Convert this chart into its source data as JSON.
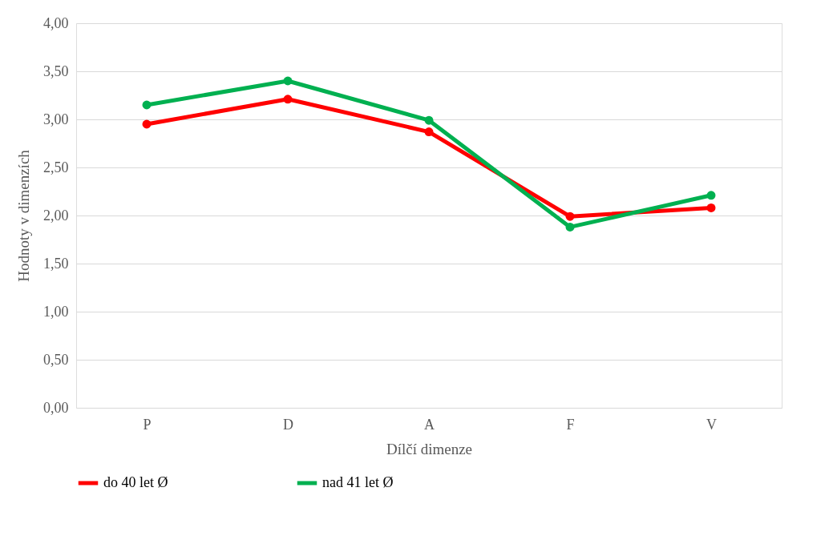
{
  "chart_data": {
    "type": "line",
    "xlabel": "Dílčí dimenze",
    "ylabel": "Hodnoty v dimenzích",
    "categories": [
      "P",
      "D",
      "A",
      "F",
      "V"
    ],
    "series": [
      {
        "name": "do 40 let Ø",
        "color": "#ff0000",
        "values": [
          2.95,
          3.21,
          2.87,
          1.99,
          2.08
        ]
      },
      {
        "name": "nad 41 let Ø",
        "color": "#00b050",
        "values": [
          3.15,
          3.4,
          2.99,
          1.88,
          2.21
        ]
      }
    ],
    "ylim": [
      0,
      4
    ],
    "yticks": [
      {
        "value": 0,
        "label": "0,00"
      },
      {
        "value": 0.5,
        "label": "0,50"
      },
      {
        "value": 1,
        "label": "1,00"
      },
      {
        "value": 1.5,
        "label": "1,50"
      },
      {
        "value": 2,
        "label": "2,00"
      },
      {
        "value": 2.5,
        "label": "2,50"
      },
      {
        "value": 3,
        "label": "3,00"
      },
      {
        "value": 3.5,
        "label": "3,50"
      },
      {
        "value": 4,
        "label": "4,00"
      }
    ],
    "grid": "y",
    "legend": "bottom",
    "marker": "circle",
    "line_style": "solid"
  }
}
